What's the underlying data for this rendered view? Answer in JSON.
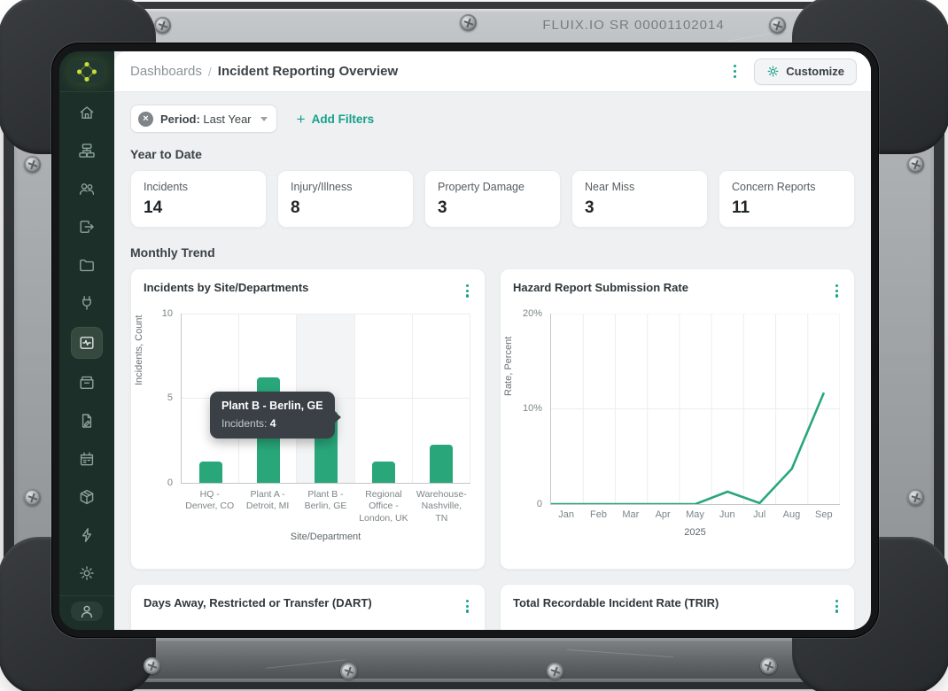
{
  "device": {
    "label": "FLUIX.IO SR 00001102014"
  },
  "colors": {
    "accent_teal": "#17a08b",
    "chart_green": "#29a77b",
    "sidebar_bg": "#1c2f29",
    "logo_dot": "#c9dc33",
    "tooltip_bg": "#3b4046"
  },
  "sidebar": {
    "logo": "fluix-logo",
    "items": [
      "home",
      "workflow",
      "users",
      "export",
      "folder",
      "plug",
      "dashboard",
      "archive",
      "document-edit",
      "calendar",
      "package",
      "bolt",
      "gear"
    ],
    "active_item": "dashboard",
    "bottom_item": "user"
  },
  "header": {
    "breadcrumb": [
      "Dashboards",
      "Incident Reporting Overview"
    ],
    "separator": "/",
    "customize_label": "Customize"
  },
  "filters": {
    "chip": {
      "prefix": "Period:",
      "value": "Last Year"
    },
    "add_label": "Add Filters",
    "plus": "+"
  },
  "sections": {
    "ytd_title": "Year to Date",
    "monthly_trend_title": "Monthly Trend"
  },
  "stats": [
    {
      "label": "Incidents",
      "value": "14"
    },
    {
      "label": "Injury/Illness",
      "value": "8"
    },
    {
      "label": "Property Damage",
      "value": "3"
    },
    {
      "label": "Near Miss",
      "value": "3"
    },
    {
      "label": "Concern Reports",
      "value": "11"
    }
  ],
  "chart_data": [
    {
      "type": "bar",
      "title": "Incidents by Site/Departments",
      "categories": [
        "HQ - Denver, CO",
        "Plant A - Detroit, MI",
        "Plant B - Berlin, GE",
        "Regional Office - London, UK",
        "Warehouse- Nashville, TN"
      ],
      "values": [
        1,
        6,
        4,
        1,
        2
      ],
      "xlabel": "Site/Department",
      "ylabel": "Incidents, Count",
      "ylim": [
        0,
        10
      ],
      "yticks": [
        0,
        5,
        10
      ],
      "ytick_labels": [
        "0",
        "5",
        "10"
      ],
      "highlight_index": 2,
      "grid": true,
      "legend": "none",
      "bar_color": "#29a77b"
    },
    {
      "type": "line",
      "title": "Hazard Report Submission Rate",
      "x": [
        "Jan",
        "Feb",
        "Mar",
        "Apr",
        "May",
        "Jun",
        "Jul",
        "Aug",
        "Sep"
      ],
      "values": [
        0,
        0,
        0,
        0,
        0,
        1.3,
        0.1,
        3.7,
        11.7
      ],
      "xlabel": "2025",
      "ylabel": "Rate, Percent",
      "ylim": [
        0,
        20
      ],
      "yticks": [
        0,
        10,
        20
      ],
      "ytick_labels": [
        "0",
        "10%",
        "20%"
      ],
      "grid": true,
      "legend": "none",
      "line_color": "#29a77b"
    }
  ],
  "tooltip": {
    "title": "Plant B - Berlin, GE",
    "label": "Incidents:",
    "value": "4"
  },
  "bottom_cards": [
    {
      "title": "Days Away, Restricted or Transfer (DART)"
    },
    {
      "title": "Total Recordable Incident Rate (TRIR)"
    }
  ]
}
